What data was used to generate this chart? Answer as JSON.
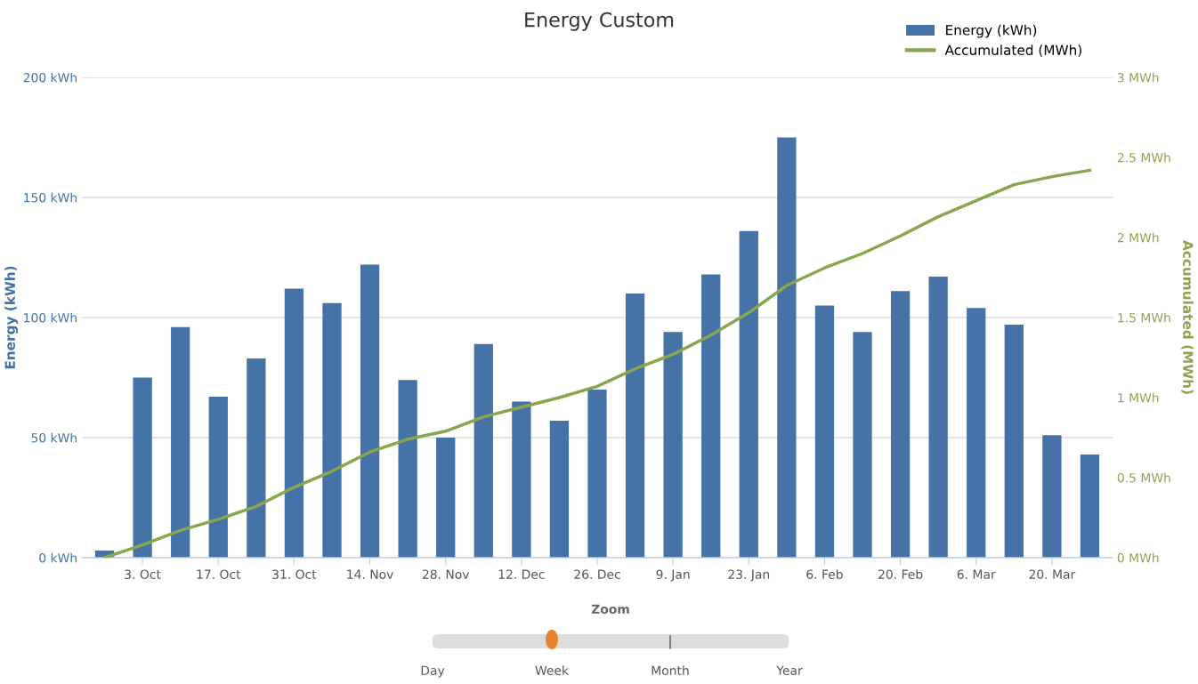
{
  "chart_data": {
    "type": "bar",
    "title": "Energy Custom",
    "ylabel": "Energy (kWh)",
    "y2label": "Accumulated (MWh)",
    "categories": [
      null,
      "3. Oct",
      null,
      "17. Oct",
      null,
      "31. Oct",
      null,
      "14. Nov",
      null,
      "28. Nov",
      null,
      "12. Dec",
      null,
      "26. Dec",
      null,
      "9. Jan",
      null,
      "23. Jan",
      null,
      "6. Feb",
      null,
      "20. Feb",
      null,
      "6. Mar",
      null,
      "20. Mar",
      null
    ],
    "series": [
      {
        "name": "Energy (kWh)",
        "color": "#4572a7",
        "values": [
          3,
          75,
          96,
          67,
          83,
          112,
          106,
          122,
          74,
          50,
          89,
          65,
          57,
          70,
          110,
          94,
          118,
          136,
          175,
          105,
          94,
          111,
          117,
          104,
          97,
          51,
          43
        ]
      },
      {
        "name": "Accumulated (MWh)",
        "type": "line",
        "axis": "y2",
        "color": "#89a54e",
        "values": [
          0.0,
          0.08,
          0.17,
          0.24,
          0.32,
          0.44,
          0.54,
          0.66,
          0.74,
          0.79,
          0.88,
          0.94,
          1.0,
          1.07,
          1.18,
          1.27,
          1.39,
          1.53,
          1.7,
          1.81,
          1.9,
          2.01,
          2.13,
          2.23,
          2.33,
          2.38,
          2.42
        ]
      }
    ],
    "ylim": [
      0,
      200
    ],
    "yticks": [
      {
        "value": 0,
        "label": "0 kWh"
      },
      {
        "value": 50,
        "label": "50 kWh"
      },
      {
        "value": 100,
        "label": "100 kWh"
      },
      {
        "value": 150,
        "label": "150 kWh"
      },
      {
        "value": 200,
        "label": "200 kWh"
      }
    ],
    "y2lim": [
      0,
      3
    ],
    "y2ticks": [
      {
        "value": 0,
        "label": "0 MWh"
      },
      {
        "value": 0.5,
        "label": "0.5 MWh"
      },
      {
        "value": 1,
        "label": "1 MWh"
      },
      {
        "value": 1.5,
        "label": "1.5 MWh"
      },
      {
        "value": 2,
        "label": "2 MWh"
      },
      {
        "value": 2.5,
        "label": "2.5 MWh"
      },
      {
        "value": 3,
        "label": "3 MWh"
      }
    ],
    "grid": "y",
    "legend": "top right",
    "marker": "none",
    "line_style": "solid",
    "annotations": [
      "Zoom",
      "Day",
      "Week",
      "Month",
      "Year"
    ]
  }
}
